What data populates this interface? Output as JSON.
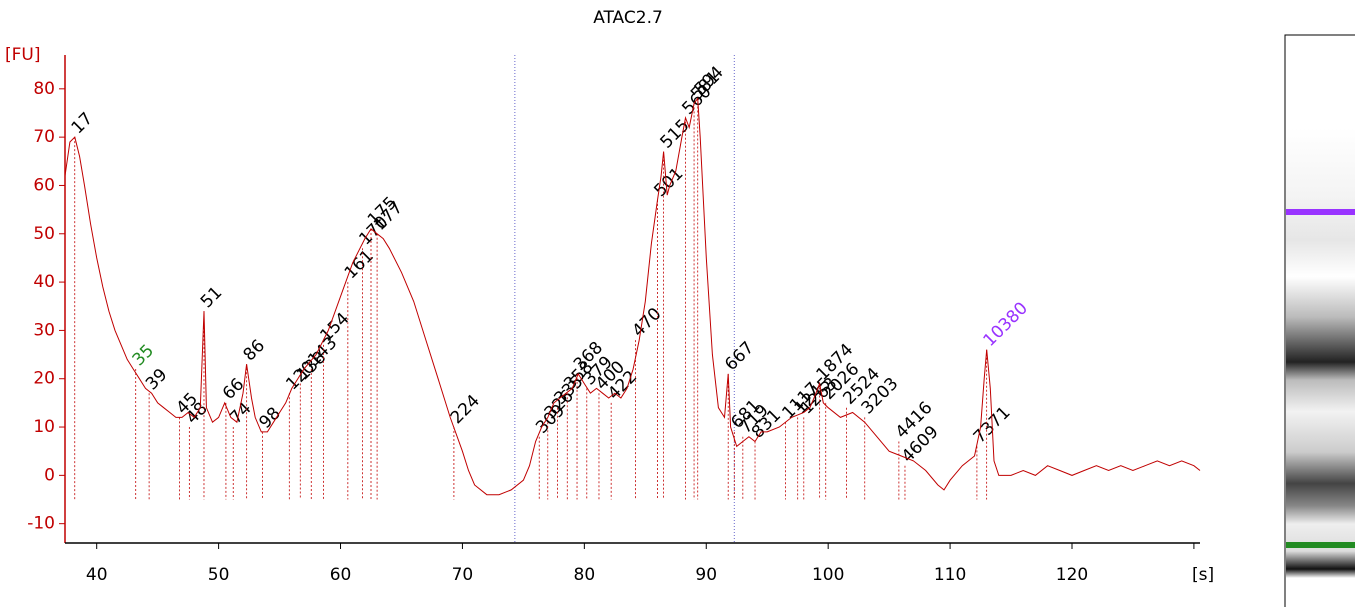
{
  "chart_data": {
    "type": "line",
    "title": "ATAC2.7",
    "y_label": "[FU]",
    "x_label": "[s]",
    "xlim": [
      37.4,
      130.5
    ],
    "ylim": [
      -14,
      87
    ],
    "xticks": [
      40,
      50,
      60,
      70,
      80,
      90,
      100,
      110,
      120,
      130
    ],
    "yticks": [
      -10,
      0,
      10,
      20,
      30,
      40,
      50,
      60,
      70,
      80
    ],
    "color": "#c00000",
    "label_color": "#000000",
    "x": [
      37.4,
      37.8,
      38.2,
      38.6,
      39,
      39.5,
      40,
      40.5,
      41,
      41.5,
      42,
      42.5,
      43,
      43.5,
      44,
      44.5,
      45,
      45.5,
      46,
      46.5,
      47,
      47.5,
      48,
      48.5,
      48.8,
      49,
      49.5,
      50,
      50.5,
      51,
      51.5,
      52,
      52.3,
      52.7,
      53,
      53.5,
      54,
      54.5,
      55,
      55.5,
      56,
      57,
      58,
      59,
      60,
      61,
      62,
      62.5,
      63,
      63.5,
      64,
      65,
      66,
      67,
      68,
      69,
      70,
      70.5,
      71,
      72,
      73,
      74,
      75,
      75.5,
      76,
      76.5,
      77,
      77.5,
      78,
      78.5,
      79,
      79.5,
      80,
      80.5,
      81,
      81.5,
      82,
      82.5,
      83,
      83.5,
      84,
      84.5,
      85,
      85.5,
      86,
      86.3,
      86.5,
      86.8,
      87,
      87.5,
      88,
      88.3,
      88.6,
      89,
      89.3,
      89.5,
      90,
      90.5,
      91,
      91.5,
      91.8,
      92,
      92.5,
      93,
      93.5,
      94,
      94.5,
      95,
      96,
      97,
      98,
      98.5,
      99,
      99.3,
      99.6,
      100,
      101,
      102,
      103,
      104,
      105,
      106,
      107,
      108,
      109,
      109.5,
      110,
      111,
      112,
      112.5,
      112.8,
      113,
      113.3,
      113.6,
      114,
      115,
      116,
      117,
      118,
      119,
      120,
      121,
      122,
      123,
      124,
      125,
      126,
      127,
      128,
      129,
      130,
      130.5
    ],
    "values": [
      62,
      69,
      70,
      66,
      60,
      52,
      45,
      39,
      34,
      30,
      27,
      24,
      22,
      20,
      18,
      17,
      15,
      14,
      13,
      12,
      12,
      13,
      12,
      14,
      34,
      14,
      11,
      12,
      15,
      12,
      11,
      17,
      23,
      16,
      12,
      9,
      9,
      11,
      13,
      15,
      18,
      22,
      25,
      30,
      37,
      44,
      49,
      51,
      50,
      49,
      47,
      42,
      36,
      28,
      20,
      12,
      5,
      1,
      -2,
      -4,
      -4,
      -3,
      -1,
      2,
      7,
      10,
      12,
      15,
      16,
      17,
      18,
      21,
      19,
      17,
      18,
      17,
      16,
      17,
      16,
      18,
      22,
      28,
      36,
      48,
      57,
      62,
      67,
      58,
      60,
      63,
      70,
      74,
      72,
      77,
      78,
      70,
      45,
      25,
      14,
      12,
      21,
      10,
      6,
      7,
      8,
      7,
      9,
      9,
      10,
      12,
      13,
      14,
      17,
      19,
      15,
      14,
      12,
      13,
      11,
      8,
      5,
      4,
      3,
      1,
      -2,
      -3,
      -1,
      2,
      4,
      10,
      20,
      26,
      18,
      3,
      0,
      0,
      1,
      0,
      2,
      1,
      0,
      1,
      2,
      1,
      2,
      1,
      2,
      3,
      2,
      3,
      2,
      1
    ],
    "regions": [
      74.3,
      92.3
    ],
    "peaks": [
      {
        "size": 17,
        "x": 38.2,
        "y": 70
      },
      {
        "size": 35,
        "x": 43.2,
        "y": 22,
        "color": "#228b22"
      },
      {
        "size": 39,
        "x": 44.3,
        "y": 17
      },
      {
        "size": 45,
        "x": 46.8,
        "y": 12
      },
      {
        "size": 48,
        "x": 47.6,
        "y": 10
      },
      {
        "size": 51,
        "x": 48.8,
        "y": 34
      },
      {
        "size": 66,
        "x": 50.6,
        "y": 15
      },
      {
        "size": 74,
        "x": 51.2,
        "y": 10
      },
      {
        "size": 86,
        "x": 52.3,
        "y": 23
      },
      {
        "size": 98,
        "x": 53.6,
        "y": 9
      },
      {
        "size": 120,
        "x": 55.8,
        "y": 17
      },
      {
        "size": 138,
        "x": 56.7,
        "y": 19
      },
      {
        "size": 143,
        "x": 57.6,
        "y": 22
      },
      {
        "size": 154,
        "x": 58.6,
        "y": 27
      },
      {
        "size": 161,
        "x": 60.6,
        "y": 40
      },
      {
        "size": 170,
        "x": 61.8,
        "y": 47
      },
      {
        "size": 175,
        "x": 62.5,
        "y": 51
      },
      {
        "size": 177,
        "x": 63,
        "y": 50
      },
      {
        "size": 224,
        "x": 69.3,
        "y": 10
      },
      {
        "size": 309,
        "x": 76.3,
        "y": 8
      },
      {
        "size": 326,
        "x": 77,
        "y": 11
      },
      {
        "size": 335,
        "x": 77.8,
        "y": 14
      },
      {
        "size": 358,
        "x": 78.6,
        "y": 17
      },
      {
        "size": 368,
        "x": 79.4,
        "y": 21
      },
      {
        "size": 379,
        "x": 80.2,
        "y": 18
      },
      {
        "size": 400,
        "x": 81.2,
        "y": 17
      },
      {
        "size": 422,
        "x": 82.2,
        "y": 15
      },
      {
        "size": 470,
        "x": 84.2,
        "y": 28
      },
      {
        "size": 501,
        "x": 86,
        "y": 57
      },
      {
        "size": 515,
        "x": 86.5,
        "y": 67
      },
      {
        "size": 560,
        "x": 88.3,
        "y": 74
      },
      {
        "size": 581,
        "x": 89,
        "y": 77
      },
      {
        "size": 594,
        "x": 89.3,
        "y": 78
      },
      {
        "size": 667,
        "x": 91.8,
        "y": 21
      },
      {
        "size": 681,
        "x": 92.3,
        "y": 9
      },
      {
        "size": 719,
        "x": 93,
        "y": 8
      },
      {
        "size": 831,
        "x": 94,
        "y": 7
      },
      {
        "size": 1117,
        "x": 96.5,
        "y": 11
      },
      {
        "size": 1245,
        "x": 97.5,
        "y": 12
      },
      {
        "size": 1263,
        "x": 98,
        "y": 12
      },
      {
        "size": 1874,
        "x": 99.3,
        "y": 19
      },
      {
        "size": 2026,
        "x": 99.8,
        "y": 15
      },
      {
        "size": 2524,
        "x": 101.5,
        "y": 14
      },
      {
        "size": 3203,
        "x": 103,
        "y": 12
      },
      {
        "size": 4416,
        "x": 105.8,
        "y": 7
      },
      {
        "size": 4609,
        "x": 106.3,
        "y": 2
      },
      {
        "size": 7371,
        "x": 112.2,
        "y": 6
      },
      {
        "size": 10380,
        "x": 113,
        "y": 26,
        "color": "#9933ff"
      }
    ]
  }
}
